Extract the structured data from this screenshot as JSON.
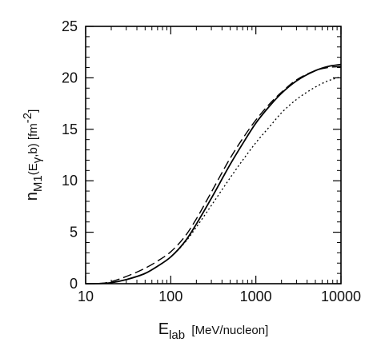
{
  "chart_data": {
    "type": "line",
    "xscale": "log",
    "xlim": [
      10,
      10000
    ],
    "ylim": [
      0,
      25
    ],
    "grid": false,
    "x_ticks": [
      10,
      100,
      1000,
      10000
    ],
    "x_tick_labels": [
      "10",
      "100",
      "1000",
      "10000"
    ],
    "y_ticks": [
      0,
      5,
      10,
      15,
      20,
      25
    ],
    "y_tick_labels": [
      "0",
      "5",
      "10",
      "15",
      "20",
      "25"
    ],
    "xlabel": {
      "main": "E",
      "sub": "lab",
      "rest": "[MeV/nucleon]"
    },
    "ylabel": {
      "main": "n",
      "sub": "M1",
      "mid": "(E",
      "sub2": "γ",
      "mid2": ",b)  [fm",
      "sup": "-2",
      "end": "]"
    },
    "series": [
      {
        "style": "solid",
        "x": [
          10,
          15,
          20,
          30,
          50,
          70,
          100,
          150,
          200,
          300,
          500,
          700,
          1000,
          1500,
          2000,
          3000,
          5000,
          7000,
          10000
        ],
        "y": [
          0,
          0.02,
          0.1,
          0.4,
          1.0,
          1.7,
          2.6,
          4.2,
          5.8,
          8.3,
          11.6,
          13.6,
          15.6,
          17.4,
          18.5,
          19.7,
          20.7,
          21.1,
          21.3
        ]
      },
      {
        "style": "dashed",
        "x": [
          10,
          15,
          20,
          30,
          50,
          70,
          100,
          150,
          200,
          300,
          500,
          700,
          1000,
          1500,
          2000,
          3000,
          5000,
          7000,
          10000
        ],
        "y": [
          0,
          0.03,
          0.2,
          0.7,
          1.5,
          2.2,
          3.1,
          4.7,
          6.3,
          8.9,
          12.2,
          14.1,
          15.9,
          17.6,
          18.6,
          19.8,
          20.7,
          21.0,
          21.1
        ]
      },
      {
        "style": "dotted",
        "x": [
          10,
          15,
          20,
          30,
          50,
          70,
          100,
          150,
          200,
          300,
          500,
          700,
          1000,
          1500,
          2000,
          3000,
          5000,
          7000,
          10000
        ],
        "y": [
          0,
          0.02,
          0.1,
          0.4,
          1.0,
          1.7,
          2.6,
          4.1,
          5.5,
          7.6,
          10.3,
          12.0,
          13.7,
          15.4,
          16.6,
          17.9,
          19.1,
          19.7,
          20.1
        ]
      }
    ]
  }
}
